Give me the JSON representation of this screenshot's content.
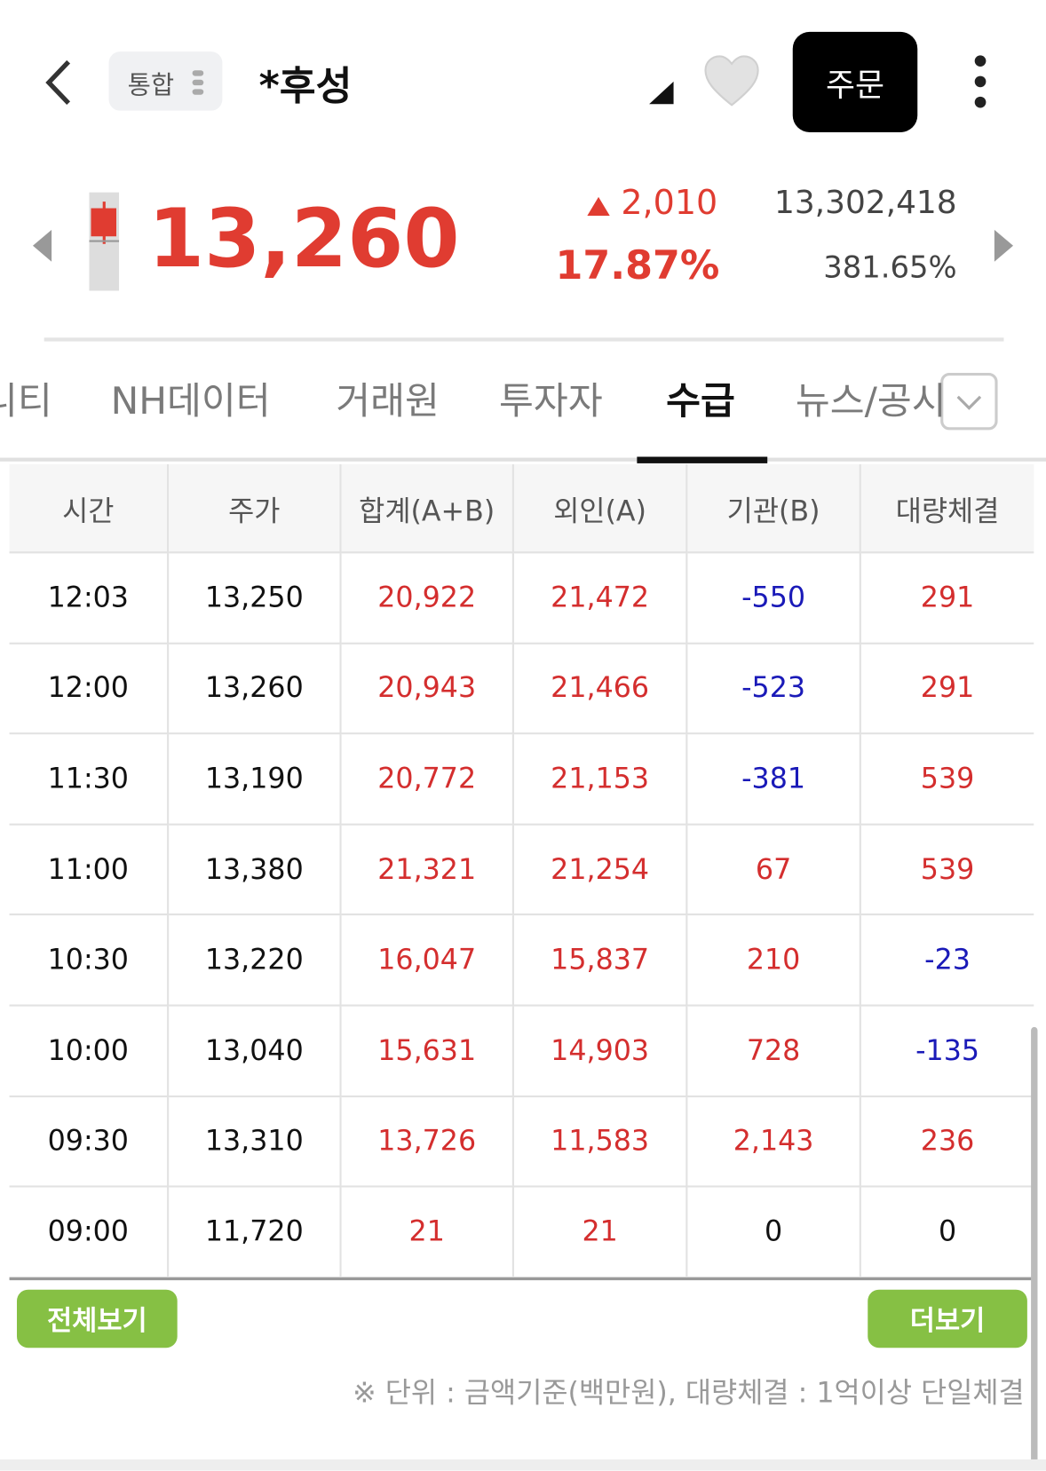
{
  "header": {
    "badge": "통합",
    "title": "*후성",
    "order_button": "주문"
  },
  "quote": {
    "price": "13,260",
    "change": "2,010",
    "change_rate": "17.87%",
    "volume": "13,302,418",
    "volume_ratio": "381.65%"
  },
  "tabs": {
    "items": [
      "니티",
      "NH데이터",
      "거래원",
      "투자자",
      "수급",
      "뉴스/공시"
    ],
    "active": 4
  },
  "table": {
    "columns": [
      "시간",
      "주가",
      "합계(A+B)",
      "외인(A)",
      "기관(B)",
      "대량체결"
    ],
    "rows": [
      [
        "12:03",
        "13,250",
        "20,922",
        "21,472",
        "-550",
        "291"
      ],
      [
        "12:00",
        "13,260",
        "20,943",
        "21,466",
        "-523",
        "291"
      ],
      [
        "11:30",
        "13,190",
        "20,772",
        "21,153",
        "-381",
        "539"
      ],
      [
        "11:00",
        "13,380",
        "21,321",
        "21,254",
        "67",
        "539"
      ],
      [
        "10:30",
        "13,220",
        "16,047",
        "15,837",
        "210",
        "-23"
      ],
      [
        "10:00",
        "13,040",
        "15,631",
        "14,903",
        "728",
        "-135"
      ],
      [
        "09:30",
        "13,310",
        "13,726",
        "11,583",
        "2,143",
        "236"
      ],
      [
        "09:00",
        "11,720",
        "21",
        "21",
        "0",
        "0"
      ]
    ]
  },
  "buttons": {
    "view_all": "전체보기",
    "more": "더보기"
  },
  "note": "※ 단위 : 금액기준(백만원), 대량체결 : 1억이상 단일체결"
}
